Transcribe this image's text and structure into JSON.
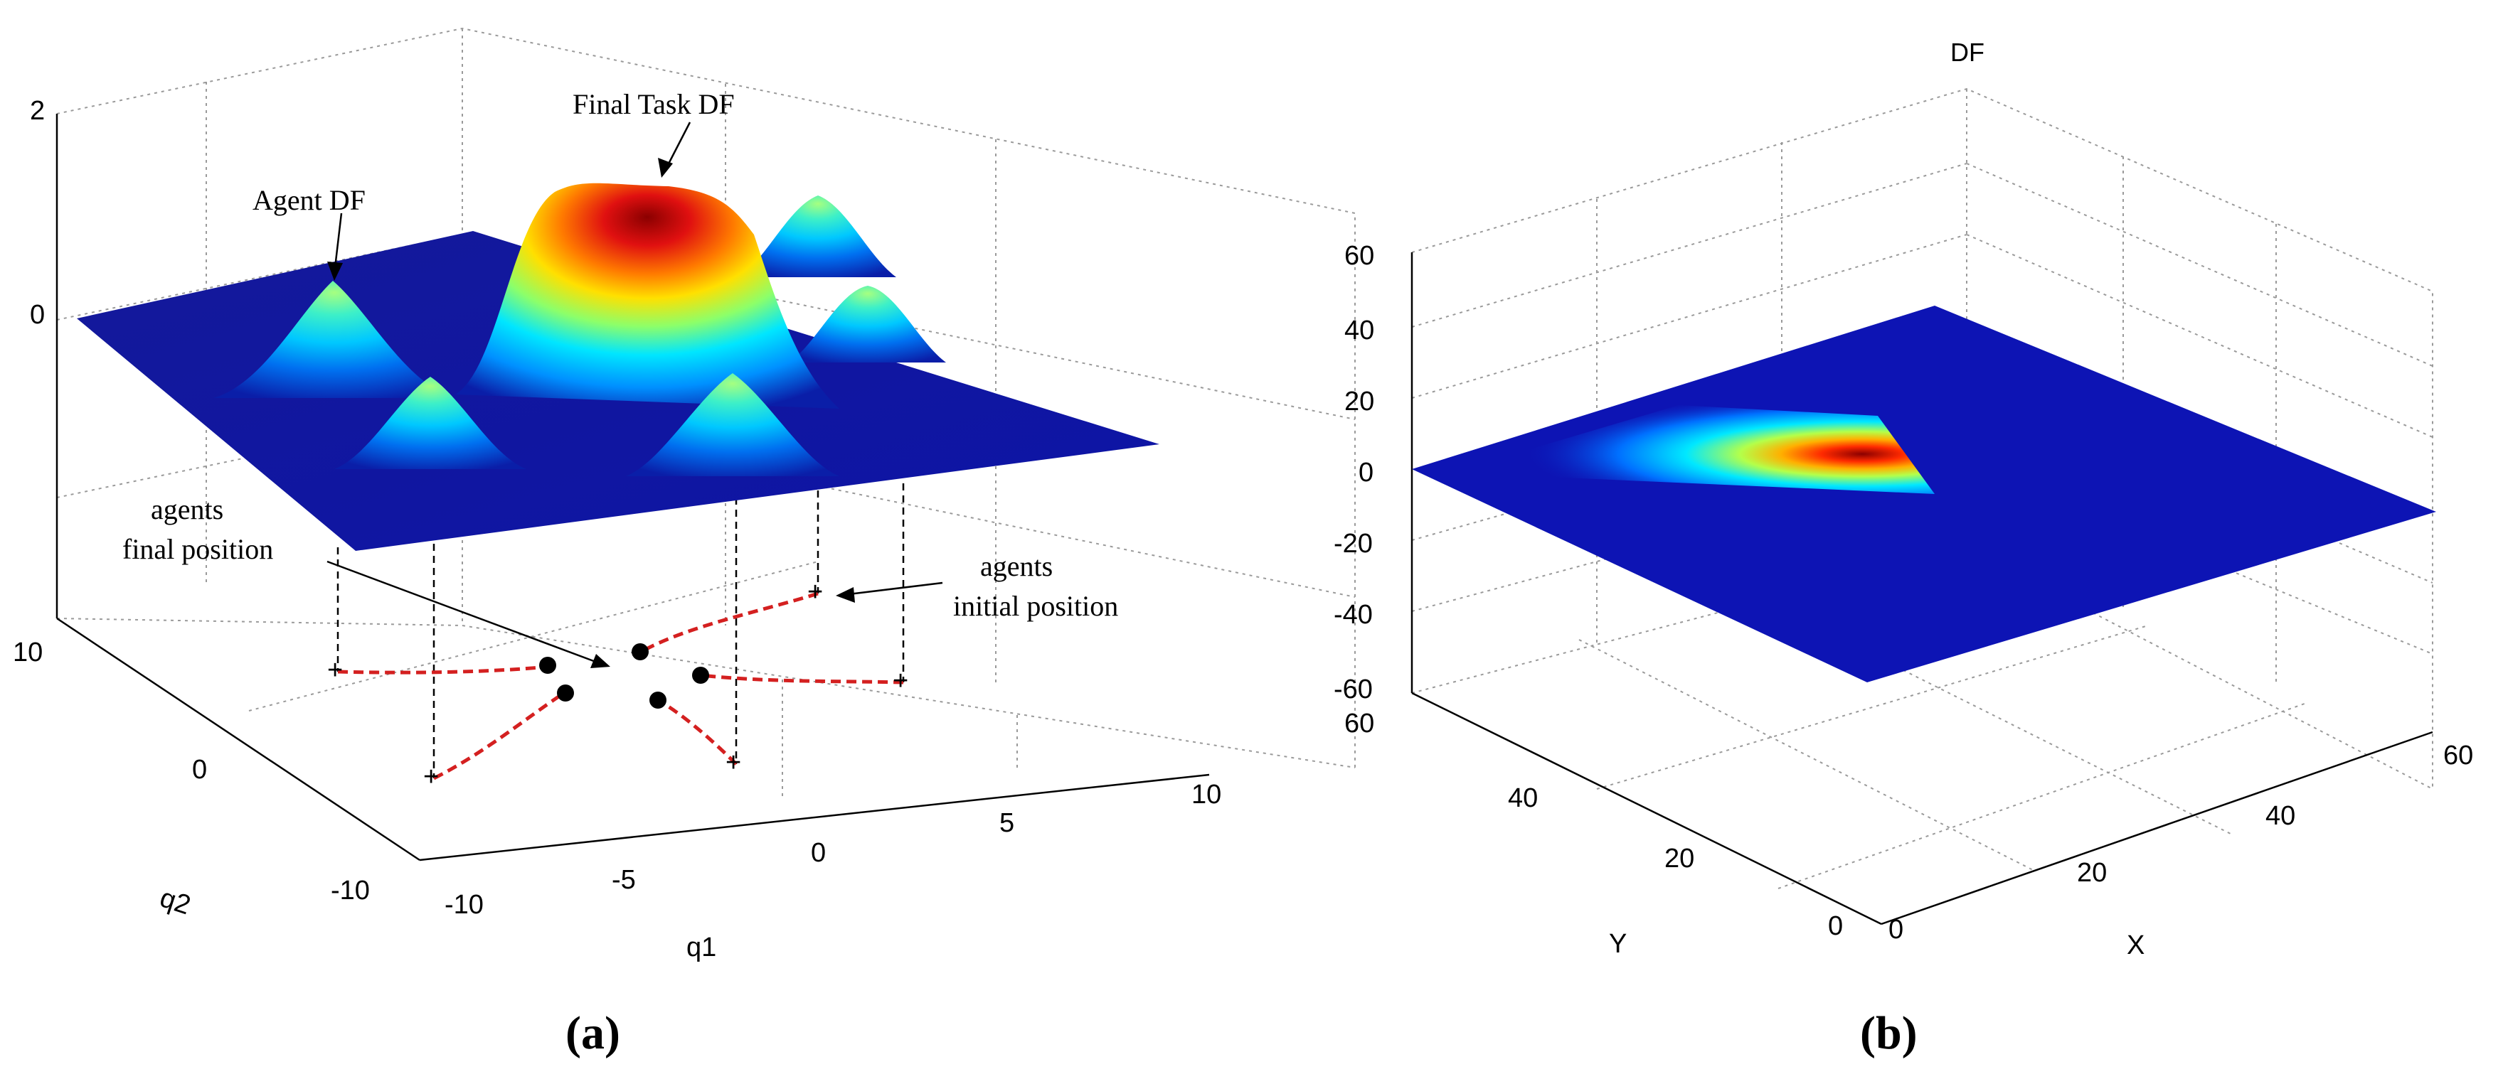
{
  "chart_data": [
    {
      "type": "surface",
      "panel_label": "(a)",
      "xlabel": "q1",
      "ylabel": "q2",
      "x_ticks": [
        "-10",
        "-5",
        "0",
        "5",
        "10"
      ],
      "y_ticks": [
        "-10",
        "0",
        "10"
      ],
      "z_ticks": [
        "0",
        "2"
      ],
      "xlim": [
        -10,
        10
      ],
      "ylim": [
        -10,
        10
      ],
      "zlim": [
        -2,
        2
      ],
      "grid": true,
      "colormap": "jet",
      "annotations": {
        "agent_df": "Agent DF",
        "final_task_df": "Final Task DF",
        "agents_final_line1": "agents",
        "agents_final_line2": "final position",
        "agents_initial_line1": "agents",
        "agents_initial_line2": "initial position"
      },
      "peaks": [
        {
          "name": "Final Task DF",
          "q1": -1,
          "q2": 3,
          "height": 1.9
        },
        {
          "name": "Agent DF",
          "q1": -7.5,
          "q2": 5,
          "height": 0.9
        },
        {
          "name": "Agent DF",
          "q1": 4,
          "q2": 6,
          "height": 0.9
        },
        {
          "name": "Agent DF",
          "q1": 5.5,
          "q2": 1,
          "height": 0.9
        },
        {
          "name": "Agent DF",
          "q1": -6,
          "q2": -2,
          "height": 0.9
        },
        {
          "name": "Agent DF",
          "q1": 1.5,
          "q2": -3,
          "height": 0.9
        }
      ],
      "projection_colors": {
        "path": "#d42020",
        "marker": "#000000"
      }
    },
    {
      "type": "surface",
      "panel_label": "(b)",
      "title": "DF",
      "xlabel": "X",
      "ylabel": "Y",
      "x_ticks": [
        "0",
        "20",
        "40",
        "60"
      ],
      "y_ticks": [
        "0",
        "20",
        "40",
        "60"
      ],
      "z_ticks": [
        "-60",
        "-40",
        "-20",
        "0",
        "20",
        "40",
        "60"
      ],
      "xlim": [
        0,
        60
      ],
      "ylim": [
        0,
        60
      ],
      "zlim": [
        -60,
        60
      ],
      "grid": true,
      "colormap": "jet"
    }
  ]
}
